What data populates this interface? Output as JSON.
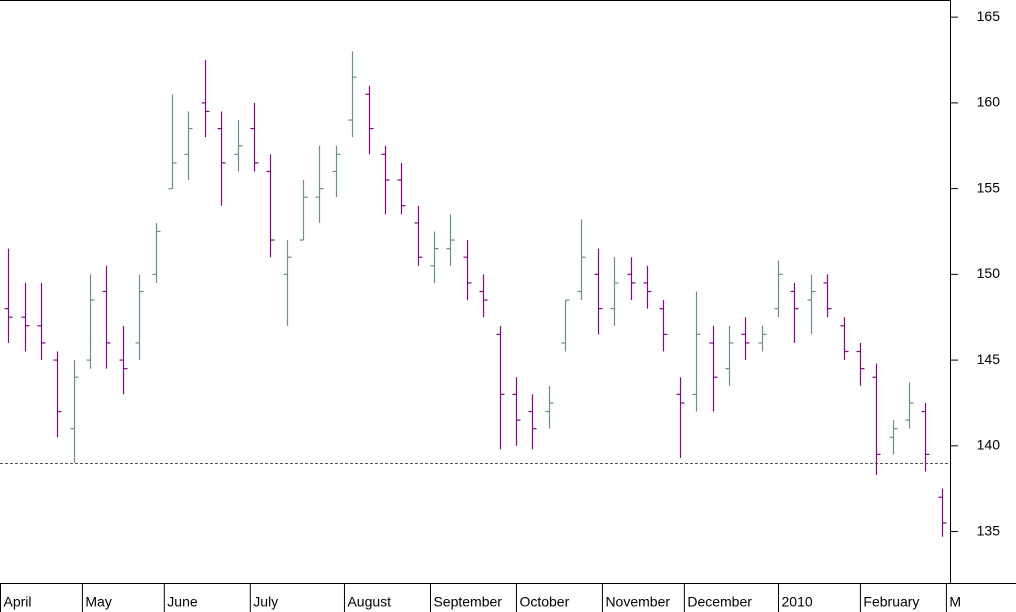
{
  "chart_data": {
    "type": "ohlc",
    "up_color": "#6e8b8e",
    "down_color": "#800a80",
    "reference_line": 139,
    "x": [
      2,
      6,
      10,
      14,
      18,
      22,
      26,
      30,
      34,
      38,
      42,
      46,
      50,
      54,
      58,
      62,
      66,
      70,
      74,
      78,
      82,
      86,
      90,
      94,
      98,
      102,
      106,
      110,
      114,
      118,
      122,
      126,
      130,
      134,
      138,
      142,
      146,
      150,
      154,
      158,
      162,
      166,
      170,
      174,
      178,
      182,
      186,
      190,
      194,
      198,
      202,
      206,
      210,
      214,
      218,
      222,
      226,
      230
    ],
    "open": [
      148,
      147.5,
      147,
      145,
      141,
      145,
      149,
      145,
      146,
      150,
      155,
      157,
      160,
      158.5,
      157,
      158.5,
      156,
      150,
      152,
      154.5,
      156,
      159,
      160.5,
      157,
      155.5,
      153,
      150.5,
      151.5,
      151,
      149,
      146.5,
      143,
      142,
      142,
      146,
      149,
      150,
      148,
      150,
      149.5,
      148,
      143,
      143,
      146,
      144.5,
      146.5,
      146,
      148,
      149,
      148.5,
      149.5,
      147,
      145.5,
      144,
      140.5,
      141.5,
      142,
      137
    ],
    "high": [
      151.5,
      149.5,
      149.5,
      145.5,
      145,
      150,
      150.5,
      147,
      150,
      153,
      160.5,
      159.5,
      162.5,
      159.5,
      159,
      160,
      157,
      152,
      155.5,
      157.5,
      157.5,
      163,
      161,
      157.5,
      156.5,
      154,
      152.5,
      153.5,
      152,
      150,
      147,
      144,
      143,
      143.5,
      148.5,
      153.2,
      151.5,
      151,
      151,
      150.5,
      148.5,
      144,
      149,
      147,
      147,
      147.5,
      147,
      150.8,
      149.5,
      150,
      150,
      147.5,
      146,
      144.8,
      141.5,
      143.7,
      142.5,
      137.5
    ],
    "low": [
      146,
      145.5,
      145,
      140.5,
      139,
      144.5,
      144.5,
      143,
      145,
      149.5,
      155,
      155.5,
      158,
      154,
      156,
      156,
      151,
      147,
      152,
      153,
      154.5,
      158,
      157,
      153.5,
      153.5,
      150.5,
      149.5,
      150.5,
      148.5,
      147.5,
      139.8,
      140,
      139.8,
      141,
      145.5,
      148.5,
      146.5,
      147,
      148.5,
      148,
      145.5,
      139.3,
      142,
      142,
      143.5,
      145,
      145.5,
      147.5,
      146,
      146.5,
      147.5,
      145,
      143.5,
      138.3,
      139.5,
      141,
      138.5,
      134.7
    ],
    "close": [
      147.5,
      147,
      146,
      142,
      144,
      148.5,
      146,
      144.5,
      149,
      152.5,
      156.5,
      158.5,
      159.5,
      156.5,
      157.5,
      156.5,
      152,
      151,
      154.5,
      155,
      157,
      161.5,
      158.5,
      155.5,
      154,
      151,
      151.5,
      152,
      149.5,
      148.5,
      143,
      141.5,
      141,
      142.5,
      148.5,
      151,
      148,
      149.5,
      149.5,
      149,
      146.5,
      142.5,
      146.5,
      144,
      146,
      146,
      146.5,
      150,
      148,
      149,
      148,
      145.5,
      144.5,
      139.5,
      141,
      142.5,
      139.5,
      135.5
    ],
    "xlim": [
      0,
      232
    ],
    "xticks": [
      {
        "value": 0,
        "label": "April"
      },
      {
        "value": 20,
        "label": "May"
      },
      {
        "value": 40,
        "label": "June"
      },
      {
        "value": 61,
        "label": "July"
      },
      {
        "value": 84,
        "label": "August"
      },
      {
        "value": 105,
        "label": "September"
      },
      {
        "value": 126,
        "label": "October"
      },
      {
        "value": 147,
        "label": "November"
      },
      {
        "value": 167,
        "label": "December"
      },
      {
        "value": 190,
        "label": "2010"
      },
      {
        "value": 210,
        "label": "February"
      },
      {
        "value": 231,
        "label": "M"
      }
    ],
    "ylim": [
      132,
      166
    ],
    "yticks": [
      135,
      140,
      145,
      150,
      155,
      160,
      165
    ]
  }
}
